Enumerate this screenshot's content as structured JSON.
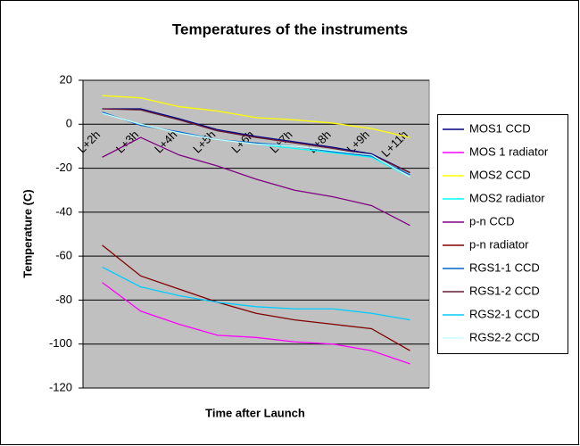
{
  "chart_data": {
    "type": "line",
    "title": "Temperatures of the instruments",
    "xlabel": "Time after Launch",
    "ylabel": "Temperature (C)",
    "categories": [
      "L+2h",
      "L+3h",
      "L+4h",
      "L+5h",
      "L+6h",
      "L+7h",
      "L+8h",
      "L+9h",
      "L+11h"
    ],
    "series": [
      {
        "name": "MOS1 CCD",
        "color": "#000080",
        "values": [
          7,
          7,
          2.5,
          -2.5,
          -5.5,
          -8,
          -10.5,
          -13.5,
          -22
        ]
      },
      {
        "name": "MOS 1 radiator",
        "color": "#ff00ff",
        "values": [
          -72,
          -85,
          -91,
          -96,
          -97,
          -99,
          -100,
          -103,
          -109
        ]
      },
      {
        "name": "MOS2 CCD",
        "color": "#ffff00",
        "values": [
          13,
          12,
          8,
          6,
          3,
          2,
          0.5,
          -2,
          -6
        ]
      },
      {
        "name": "MOS2 radiator",
        "color": "#00ffff",
        "values": [
          5,
          0,
          -4,
          -7,
          -9,
          -11,
          -13,
          -15,
          -24
        ]
      },
      {
        "name": "p-n CCD",
        "color": "#800080",
        "values": [
          -15,
          -6,
          -14,
          -19,
          -25,
          -30,
          -33,
          -37,
          -46
        ]
      },
      {
        "name": "p-n radiator",
        "color": "#800000",
        "values": [
          -55,
          -69,
          -75,
          -81,
          -86,
          -89,
          -91,
          -93,
          -103
        ]
      },
      {
        "name": "RGS1-1 CCD",
        "color": "#0066cc",
        "values": [
          5.5,
          -0.5,
          -3.5,
          -7,
          -8.5,
          -10,
          -12.5,
          -14.5,
          -23
        ]
      },
      {
        "name": "RGS1-2 CCD",
        "color": "#661a33",
        "values": [
          7,
          6.5,
          2,
          -3,
          -6,
          -8.5,
          -11,
          -14,
          -22
        ]
      },
      {
        "name": "RGS2-1 CCD",
        "color": "#00ccff",
        "values": [
          -65,
          -74,
          -78,
          -81,
          -83,
          -84,
          -84,
          -86,
          -89
        ]
      },
      {
        "name": "RGS2-2 CCD",
        "color": "#ccffff",
        "values": [
          5,
          0,
          -4,
          -7,
          -9,
          -10,
          -12,
          -14,
          -24
        ]
      }
    ],
    "ylim": [
      -120,
      20
    ],
    "yticks": [
      20,
      0,
      -20,
      -40,
      -60,
      -80,
      -100,
      -120
    ],
    "grid": true,
    "legend": "right",
    "plot_background": "#c0c0c0"
  }
}
